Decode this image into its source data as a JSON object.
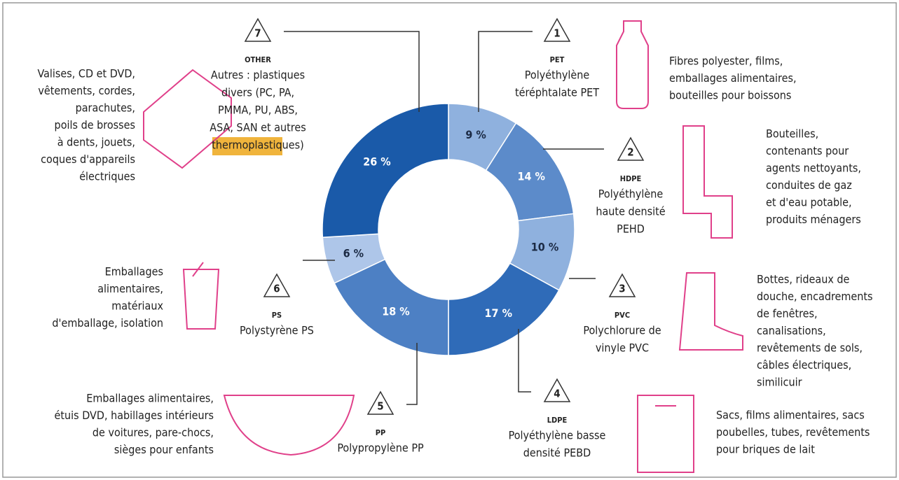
{
  "chart_data": {
    "type": "donut",
    "categories": [
      "PET",
      "HDPE",
      "PVC",
      "LDPE",
      "PP",
      "PS",
      "OTHER"
    ],
    "codes": [
      1,
      2,
      3,
      4,
      5,
      6,
      7
    ],
    "values": [
      9,
      14,
      10,
      17,
      18,
      6,
      26
    ],
    "value_labels": [
      "9 %",
      "14 %",
      "10 %",
      "17 %",
      "18 %",
      "6 %",
      "26 %"
    ],
    "colors": [
      "#8fb1de",
      "#5c8bca",
      "#8fb1de",
      "#2f6bb8",
      "#4d80c4",
      "#aec6e9",
      "#1a5aa9"
    ],
    "names": [
      [
        "Polyéthylène",
        "téréphtalate PET"
      ],
      [
        "Polyéthylène",
        "haute densité",
        "PEHD"
      ],
      [
        "Polychlorure de",
        "vinyle PVC"
      ],
      [
        "Polyéthylène basse",
        "densité PEBD"
      ],
      [
        "Polypropylène PP"
      ],
      [
        "Polystyrène PS"
      ],
      [
        "Autres : plastiques",
        "divers (PC, PA,",
        "PMMA, PU, ABS,",
        "ASA, SAN  et autres",
        "thermoplastiques)"
      ]
    ],
    "uses": [
      [
        "Fibres polyester, films,",
        "emballages alimentaires,",
        "bouteilles pour boissons"
      ],
      [
        "Bouteilles,",
        "contenants pour",
        "agents nettoyants,",
        "conduites de gaz",
        "et d'eau potable,",
        "produits ménagers"
      ],
      [
        "Bottes, rideaux de",
        "douche, encadrements",
        "de fenêtres,",
        "canalisations,",
        "revêtements de sols,",
        "câbles électriques,",
        "similicuir"
      ],
      [
        "Sacs, films alimentaires, sacs",
        "poubelles, tubes, revêtements",
        "pour briques de lait"
      ],
      [
        "Emballages alimentaires,",
        "étuis DVD, habillages intérieurs",
        "de voitures, pare-chocs,",
        "sièges pour enfants"
      ],
      [
        "Emballages",
        "alimentaires,",
        "matériaux",
        "d'emballage, isolation"
      ],
      [
        "Valises, CD et DVD,",
        "vêtements, cordes,",
        "parachutes,",
        "poils de brosses",
        "à dents, jouets,",
        "coques d'appareils",
        "électriques"
      ]
    ]
  }
}
